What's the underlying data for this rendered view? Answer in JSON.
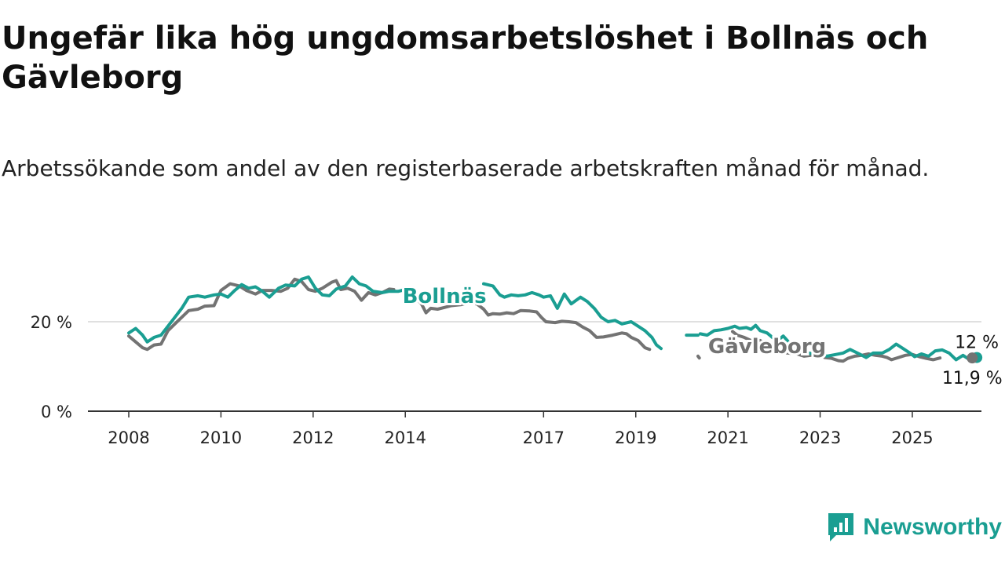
{
  "title": "Ungefär lika hög ungdomsarbetslöshet i Bollnäs och Gävleborg",
  "subtitle": "Arbetssökande som andel av den registerbaserade arbetskraften månad för månad.",
  "brand": {
    "name": "Newsworthy",
    "color": "#1a9e92",
    "icon": "newsworthy-logo-icon"
  },
  "chart_data": {
    "type": "line",
    "xlim": [
      2008.0,
      2026.5
    ],
    "ylim": [
      0,
      30
    ],
    "grid": "horizontal",
    "y_ticks": [
      {
        "value": 0,
        "label": "0 %"
      },
      {
        "value": 20,
        "label": "20 %"
      }
    ],
    "x_ticks": [
      {
        "value": 2008,
        "label": "2008"
      },
      {
        "value": 2010,
        "label": "2010"
      },
      {
        "value": 2012,
        "label": "2012"
      },
      {
        "value": 2014,
        "label": "2014"
      },
      {
        "value": 2017,
        "label": "2017"
      },
      {
        "value": 2019,
        "label": "2019"
      },
      {
        "value": 2021,
        "label": "2021"
      },
      {
        "value": 2023,
        "label": "2023"
      },
      {
        "value": 2025,
        "label": "2025"
      }
    ],
    "series": [
      {
        "name": "Gävleborg",
        "color": "#737373",
        "segments": [
          [
            [
              2008.0,
              16.8
            ],
            [
              2008.15,
              15.5
            ],
            [
              2008.3,
              14.2
            ],
            [
              2008.4,
              13.8
            ],
            [
              2008.55,
              14.8
            ],
            [
              2008.7,
              15.0
            ],
            [
              2008.85,
              18.0
            ],
            [
              2009.0,
              19.5
            ],
            [
              2009.15,
              21.0
            ],
            [
              2009.3,
              22.5
            ],
            [
              2009.5,
              22.8
            ],
            [
              2009.65,
              23.5
            ],
            [
              2009.85,
              23.6
            ],
            [
              2010.0,
              27.0
            ],
            [
              2010.2,
              28.5
            ],
            [
              2010.4,
              28.0
            ],
            [
              2010.55,
              27.0
            ],
            [
              2010.75,
              26.2
            ],
            [
              2010.9,
              27.0
            ],
            [
              2011.1,
              27.0
            ],
            [
              2011.3,
              26.8
            ],
            [
              2011.45,
              27.5
            ],
            [
              2011.6,
              29.5
            ],
            [
              2011.75,
              29.0
            ],
            [
              2011.9,
              27.2
            ],
            [
              2012.05,
              26.8
            ],
            [
              2012.2,
              27.5
            ],
            [
              2012.4,
              28.8
            ],
            [
              2012.5,
              29.2
            ],
            [
              2012.6,
              27.2
            ],
            [
              2012.75,
              27.5
            ],
            [
              2012.9,
              26.8
            ],
            [
              2013.05,
              24.8
            ],
            [
              2013.2,
              26.5
            ],
            [
              2013.35,
              26.0
            ],
            [
              2013.5,
              26.5
            ],
            [
              2013.65,
              27.3
            ],
            [
              2013.75,
              27.2
            ]
          ],
          [
            [
              2014.2,
              25.5
            ],
            [
              2014.35,
              24.0
            ],
            [
              2014.45,
              22.0
            ],
            [
              2014.55,
              23.0
            ],
            [
              2014.7,
              22.8
            ],
            [
              2014.85,
              23.2
            ],
            [
              2015.0,
              23.6
            ],
            [
              2015.2,
              23.8
            ],
            [
              2015.35,
              24.2
            ],
            [
              2015.55,
              24.0
            ],
            [
              2015.7,
              22.8
            ],
            [
              2015.8,
              21.5
            ],
            [
              2015.9,
              21.8
            ],
            [
              2016.05,
              21.7
            ],
            [
              2016.2,
              22.0
            ],
            [
              2016.35,
              21.8
            ],
            [
              2016.5,
              22.5
            ],
            [
              2016.7,
              22.4
            ],
            [
              2016.85,
              22.2
            ],
            [
              2016.95,
              21.0
            ],
            [
              2017.05,
              20.0
            ],
            [
              2017.25,
              19.8
            ],
            [
              2017.4,
              20.1
            ],
            [
              2017.55,
              20.0
            ],
            [
              2017.7,
              19.8
            ],
            [
              2017.85,
              18.8
            ],
            [
              2018.0,
              18.0
            ],
            [
              2018.15,
              16.5
            ],
            [
              2018.3,
              16.6
            ],
            [
              2018.5,
              17.0
            ],
            [
              2018.7,
              17.5
            ],
            [
              2018.8,
              17.3
            ],
            [
              2018.9,
              16.5
            ],
            [
              2019.05,
              15.8
            ],
            [
              2019.2,
              14.2
            ],
            [
              2019.3,
              13.8
            ]
          ],
          [
            [
              2020.35,
              12.3
            ],
            [
              2020.38,
              11.9
            ]
          ],
          [
            [
              2021.1,
              17.8
            ],
            [
              2021.2,
              17.0
            ],
            [
              2021.35,
              16.5
            ],
            [
              2021.5,
              15.8
            ],
            [
              2021.6,
              15.5
            ],
            [
              2021.7,
              15.8
            ],
            [
              2021.85,
              14.5
            ],
            [
              2022.0,
              14.0
            ],
            [
              2022.15,
              13.2
            ],
            [
              2022.3,
              13.0
            ],
            [
              2022.5,
              12.8
            ],
            [
              2022.65,
              12.3
            ],
            [
              2022.8,
              12.5
            ],
            [
              2022.95,
              12.6
            ],
            [
              2023.1,
              12.0
            ],
            [
              2023.25,
              11.8
            ],
            [
              2023.4,
              11.3
            ],
            [
              2023.5,
              11.2
            ],
            [
              2023.6,
              11.8
            ],
            [
              2023.75,
              12.3
            ],
            [
              2023.9,
              12.5
            ],
            [
              2024.05,
              12.8
            ],
            [
              2024.2,
              12.5
            ],
            [
              2024.35,
              12.3
            ],
            [
              2024.45,
              12.0
            ],
            [
              2024.55,
              11.5
            ],
            [
              2024.7,
              12.0
            ],
            [
              2024.85,
              12.5
            ],
            [
              2025.0,
              12.7
            ],
            [
              2025.15,
              12.2
            ],
            [
              2025.3,
              11.8
            ],
            [
              2025.45,
              11.5
            ],
            [
              2025.6,
              11.9
            ]
          ]
        ]
      },
      {
        "name": "Bollnäs",
        "color": "#1a9e92",
        "segments": [
          [
            [
              2008.0,
              17.5
            ],
            [
              2008.15,
              18.5
            ],
            [
              2008.3,
              17.0
            ],
            [
              2008.4,
              15.5
            ],
            [
              2008.55,
              16.5
            ],
            [
              2008.7,
              17.0
            ],
            [
              2008.85,
              19.0
            ],
            [
              2009.0,
              21.0
            ],
            [
              2009.15,
              23.0
            ],
            [
              2009.3,
              25.5
            ],
            [
              2009.5,
              25.8
            ],
            [
              2009.65,
              25.5
            ],
            [
              2009.85,
              26.0
            ],
            [
              2010.0,
              26.2
            ],
            [
              2010.15,
              25.5
            ],
            [
              2010.3,
              27.0
            ],
            [
              2010.45,
              28.3
            ],
            [
              2010.6,
              27.5
            ],
            [
              2010.75,
              27.8
            ],
            [
              2010.9,
              26.8
            ],
            [
              2011.05,
              25.5
            ],
            [
              2011.25,
              27.5
            ],
            [
              2011.4,
              28.2
            ],
            [
              2011.6,
              28.0
            ],
            [
              2011.75,
              29.5
            ],
            [
              2011.9,
              30.0
            ],
            [
              2012.05,
              27.5
            ],
            [
              2012.2,
              26.0
            ],
            [
              2012.35,
              25.8
            ],
            [
              2012.5,
              27.3
            ],
            [
              2012.7,
              28.0
            ],
            [
              2012.85,
              30.0
            ],
            [
              2013.0,
              28.5
            ],
            [
              2013.15,
              28.0
            ],
            [
              2013.3,
              26.8
            ],
            [
              2013.5,
              26.5
            ],
            [
              2013.65,
              26.8
            ],
            [
              2013.85,
              26.8
            ],
            [
              2014.0,
              27.2
            ],
            [
              2014.05,
              25.8
            ],
            [
              2014.15,
              24.8
            ]
          ],
          [
            [
              2014.75,
              25.5
            ],
            [
              2014.85,
              24.5
            ],
            [
              2014.95,
              25.0
            ]
          ],
          [
            [
              2015.7,
              28.5
            ],
            [
              2015.9,
              28.0
            ],
            [
              2016.05,
              26.0
            ],
            [
              2016.15,
              25.5
            ],
            [
              2016.3,
              26.0
            ],
            [
              2016.45,
              25.8
            ],
            [
              2016.6,
              26.0
            ],
            [
              2016.75,
              26.5
            ],
            [
              2016.9,
              26.0
            ],
            [
              2017.0,
              25.5
            ],
            [
              2017.15,
              25.8
            ],
            [
              2017.3,
              23.0
            ],
            [
              2017.45,
              26.2
            ],
            [
              2017.6,
              24.0
            ],
            [
              2017.8,
              25.5
            ],
            [
              2017.95,
              24.5
            ],
            [
              2018.1,
              23.0
            ],
            [
              2018.25,
              21.0
            ],
            [
              2018.4,
              20.0
            ],
            [
              2018.55,
              20.3
            ],
            [
              2018.7,
              19.5
            ],
            [
              2018.9,
              20.0
            ],
            [
              2019.05,
              19.0
            ],
            [
              2019.2,
              18.0
            ],
            [
              2019.35,
              16.5
            ],
            [
              2019.45,
              14.8
            ],
            [
              2019.55,
              14.0
            ]
          ],
          [
            [
              2020.1,
              17.0
            ],
            [
              2020.35,
              17.0
            ]
          ],
          [
            [
              2020.4,
              17.3
            ],
            [
              2020.55,
              17.0
            ],
            [
              2020.7,
              18.0
            ],
            [
              2020.85,
              18.2
            ],
            [
              2021.0,
              18.5
            ],
            [
              2021.15,
              19.0
            ],
            [
              2021.25,
              18.5
            ],
            [
              2021.4,
              18.7
            ],
            [
              2021.5,
              18.3
            ],
            [
              2021.6,
              19.2
            ],
            [
              2021.7,
              18.0
            ],
            [
              2021.85,
              17.5
            ],
            [
              2022.0,
              16.2
            ],
            [
              2022.1,
              16.0
            ],
            [
              2022.2,
              16.8
            ],
            [
              2022.4,
              14.5
            ],
            [
              2022.6,
              13.2
            ],
            [
              2022.75,
              13.0
            ],
            [
              2022.85,
              12.8
            ],
            [
              2023.0,
              13.0
            ],
            [
              2023.15,
              12.3
            ],
            [
              2023.3,
              12.6
            ],
            [
              2023.5,
              13.0
            ],
            [
              2023.65,
              13.8
            ],
            [
              2023.85,
              12.8
            ],
            [
              2024.0,
              12.0
            ],
            [
              2024.15,
              13.0
            ],
            [
              2024.35,
              13.0
            ],
            [
              2024.5,
              13.8
            ],
            [
              2024.65,
              15.0
            ],
            [
              2024.8,
              14.0
            ],
            [
              2024.95,
              13.0
            ],
            [
              2025.05,
              12.2
            ],
            [
              2025.2,
              12.8
            ],
            [
              2025.35,
              12.3
            ],
            [
              2025.5,
              13.5
            ],
            [
              2025.65,
              13.7
            ],
            [
              2025.8,
              13.0
            ],
            [
              2025.95,
              11.5
            ],
            [
              2026.1,
              12.5
            ],
            [
              2026.2,
              11.8
            ],
            [
              2026.35,
              12.0
            ],
            [
              2026.45,
              12.0
            ]
          ]
        ]
      }
    ],
    "labels": [
      {
        "series": "Bollnäs",
        "text": "Bollnäs",
        "x": 2014.85,
        "y": 25.8
      },
      {
        "series": "Gävleborg",
        "text": "Gävleborg",
        "x": 2021.85,
        "y": 14.6
      }
    ],
    "end_values": [
      {
        "series": "Bollnäs",
        "text": "12 %",
        "x": 2026.4,
        "y": 12.0
      },
      {
        "series": "Gävleborg",
        "text": "11,9 %",
        "x": 2026.3,
        "y": 11.9
      }
    ]
  }
}
